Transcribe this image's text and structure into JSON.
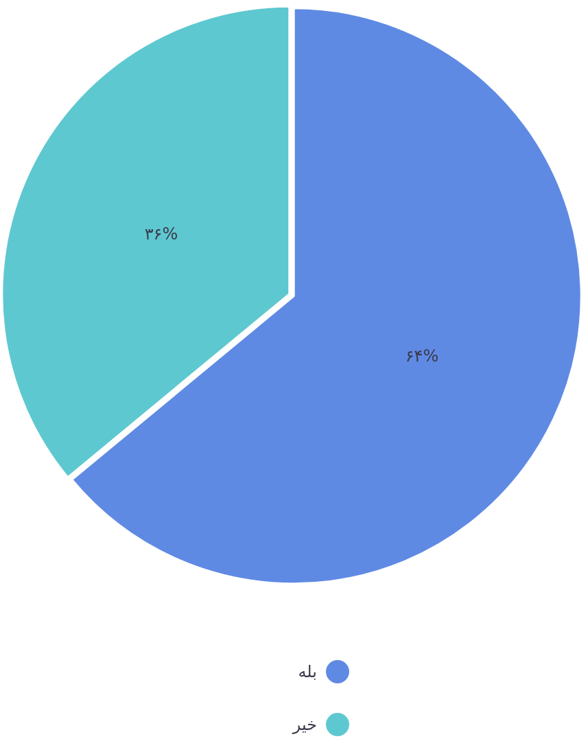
{
  "chart_data": {
    "type": "pie",
    "categories": [
      "بله",
      "خیر"
    ],
    "values": [
      64,
      36
    ],
    "colors": [
      "#5f8ae4",
      "#5ec8d0"
    ],
    "value_labels": [
      "۶۴%",
      "۳۶%"
    ],
    "legend": "bottom"
  }
}
